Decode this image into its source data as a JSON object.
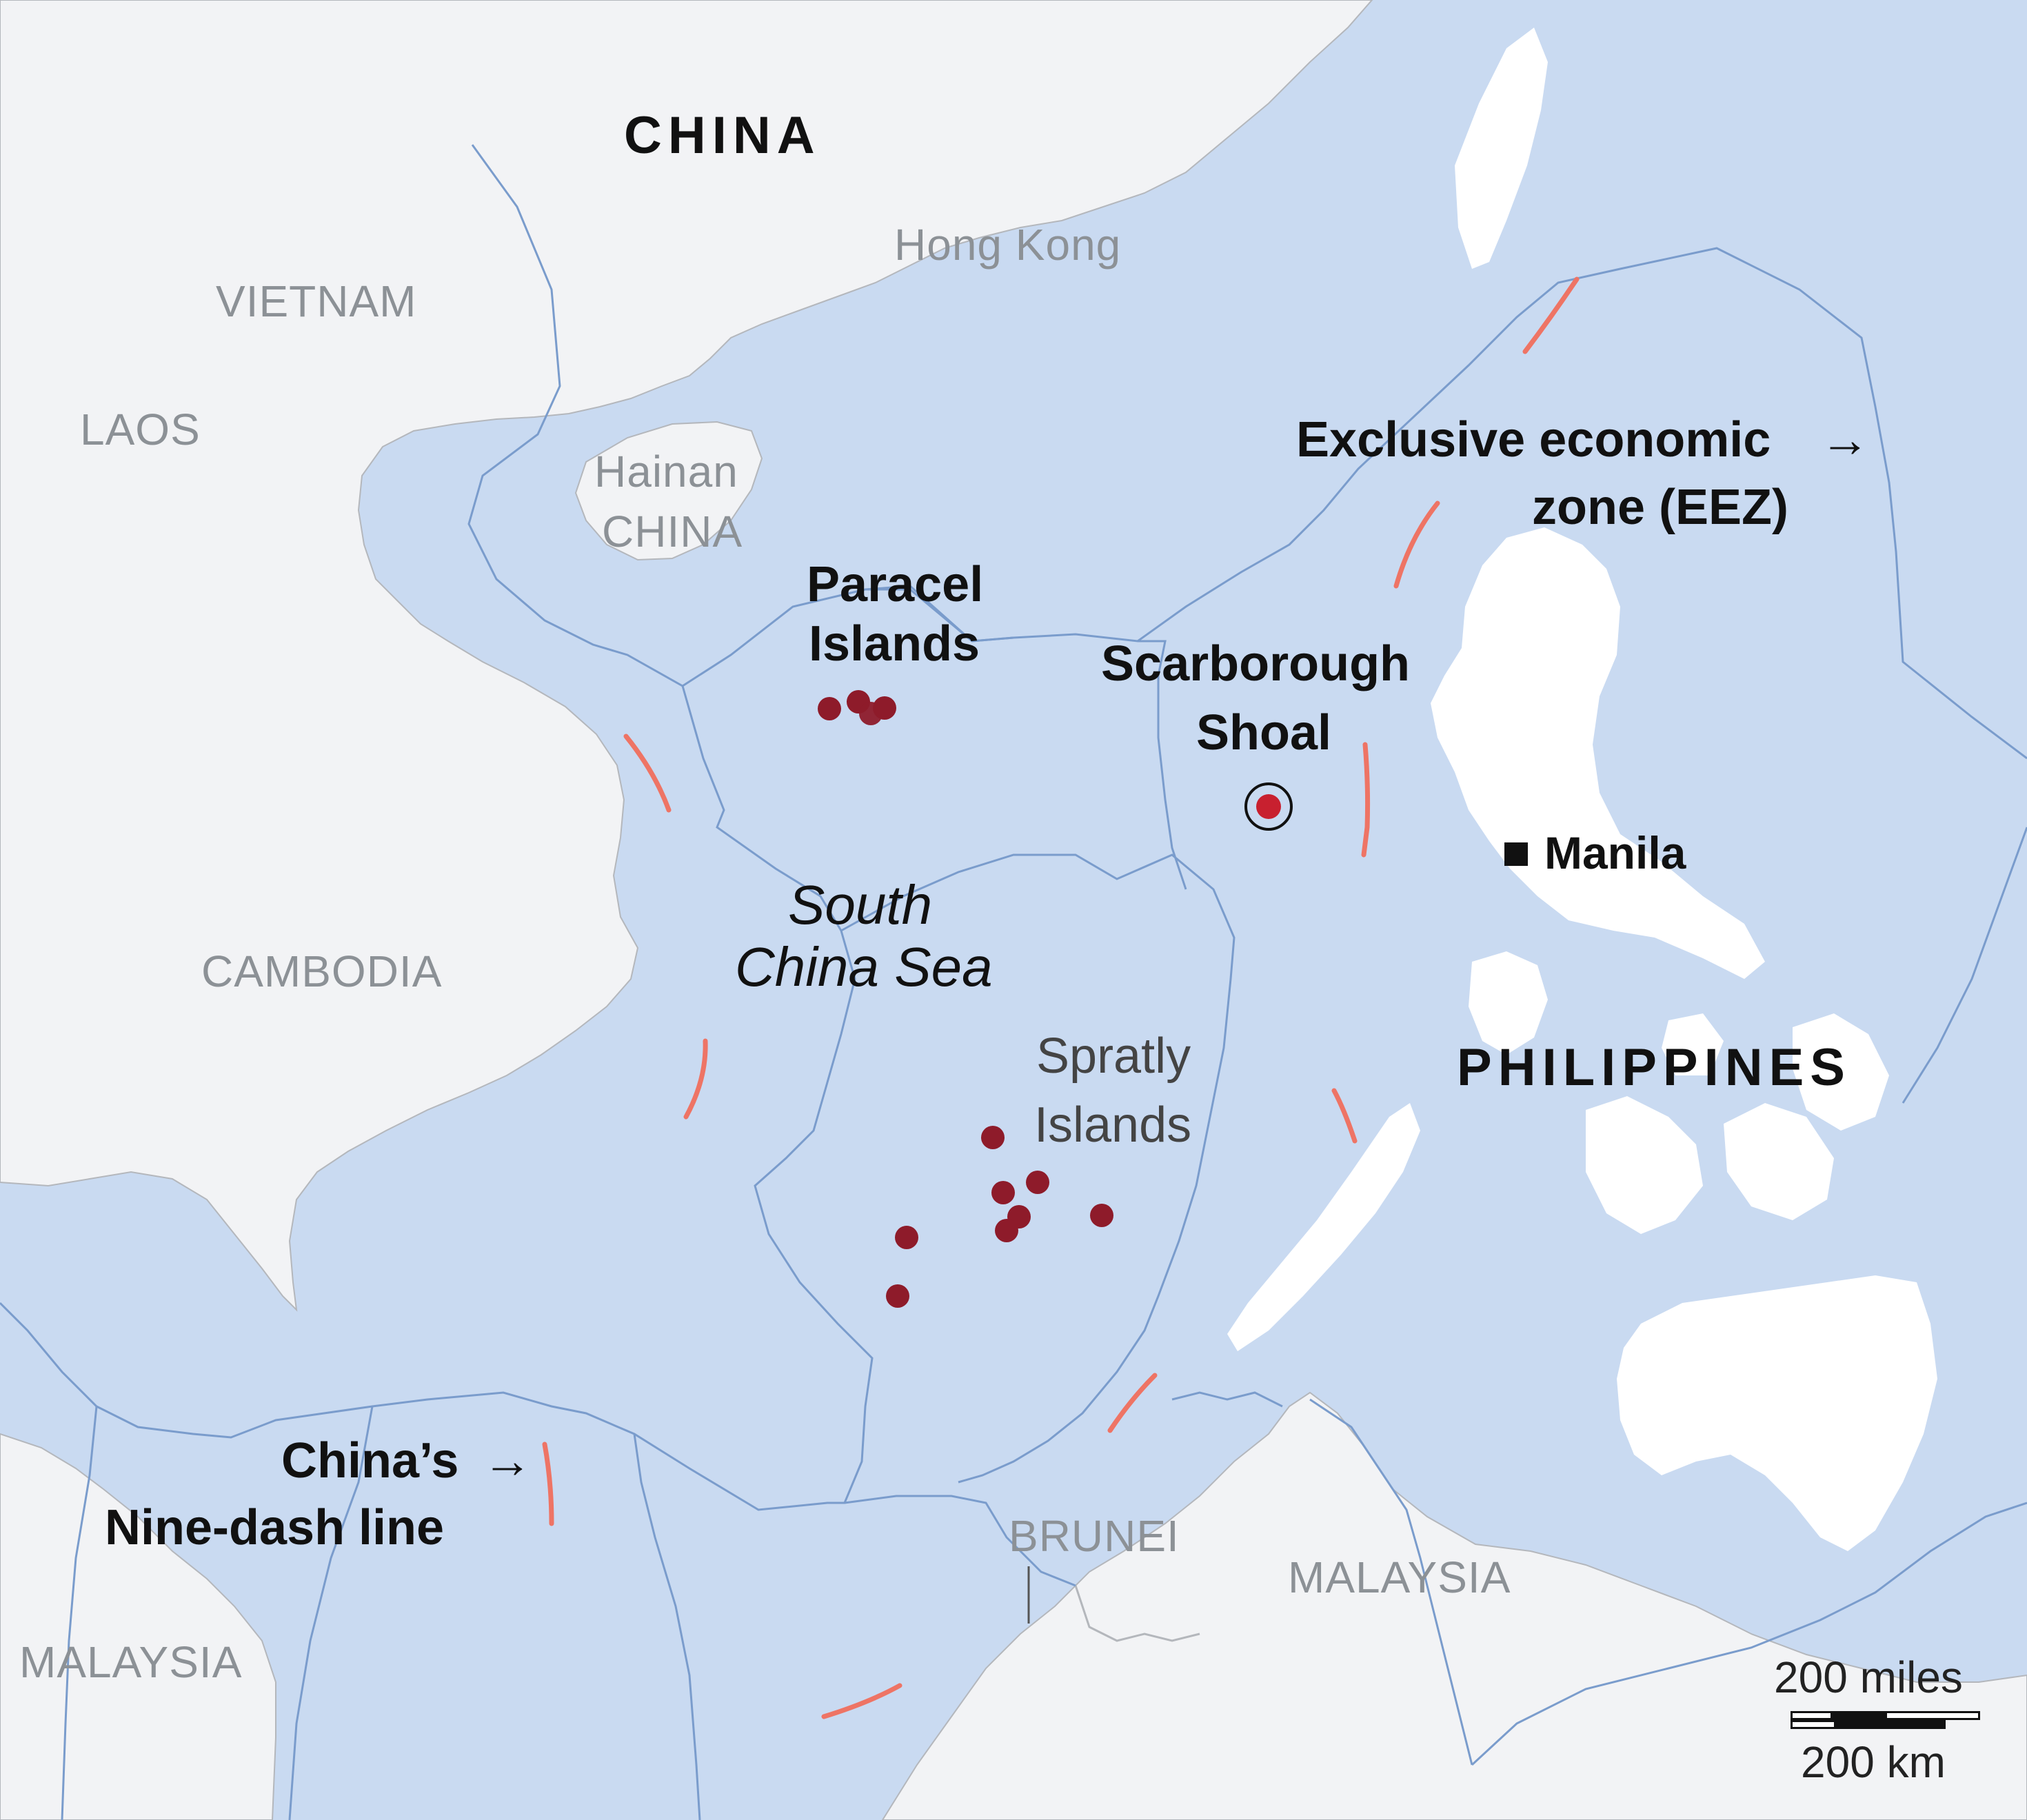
{
  "map": {
    "labels": {
      "china": "CHINA",
      "hong_kong": "Hong Kong",
      "vietnam": "VIETNAM",
      "laos": "LAOS",
      "cambodia": "CAMBODIA",
      "hainan": "Hainan",
      "hainan_china": "CHINA",
      "paracel_1": "Paracel",
      "paracel_2": "Islands",
      "scarborough_1": "Scarborough",
      "scarborough_2": "Shoal",
      "eez_1": "Exclusive economic",
      "eez_2": "zone (EEZ)",
      "manila": "Manila",
      "sea_1": "South",
      "sea_2": "China Sea",
      "spratly_1": "Spratly",
      "spratly_2": "Islands",
      "philippines": "PHILIPPINES",
      "nine_dash_1": "China’s",
      "nine_dash_2": "Nine-dash line",
      "brunei": "BRUNEI",
      "malaysia_east": "MALAYSIA",
      "malaysia_west": "MALAYSIA",
      "arrow": "→"
    },
    "scale": {
      "miles": "200 miles",
      "km": "200 km"
    },
    "colors": {
      "sea": "#c9daf1",
      "land": "#f2f3f5",
      "land_border": "#b4b7bc",
      "eez_line": "#7a9ccc",
      "nine_dash": "#ee7465",
      "island_marker": "#8e1b2a",
      "philippines_land": "#ffffff"
    }
  }
}
